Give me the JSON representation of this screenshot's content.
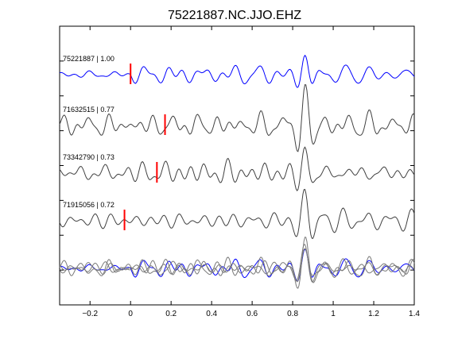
{
  "chart_data": {
    "type": "line",
    "title": "75221887.NC.JJO.EHZ",
    "xlabel": "",
    "ylabel": "",
    "xlim": [
      -0.35,
      1.4
    ],
    "xticks": [
      -0.2,
      0,
      0.2,
      0.4,
      0.6,
      0.8,
      1,
      1.2,
      1.4
    ],
    "xtick_labels": [
      "−0.2",
      "0",
      "0.2",
      "0.4",
      "0.6",
      "0.8",
      "1",
      "1.2",
      "1.4"
    ],
    "ytick_count": 9,
    "grid": false,
    "legend": "none",
    "colors": {
      "reference": "#0000ff",
      "matched": "#404040",
      "pick": "#ff0000",
      "overlay": "#7a7a7a"
    },
    "traces": [
      {
        "label": "75221887 | 1.00",
        "event_id": "75221887",
        "correlation": 1.0,
        "pick_time": 0.0,
        "color": "#0000ff",
        "seed": 11
      },
      {
        "label": "71632515 | 0.77",
        "event_id": "71632515",
        "correlation": 0.77,
        "pick_time": 0.17,
        "color": "#404040",
        "seed": 23
      },
      {
        "label": "73342790 | 0.73",
        "event_id": "73342790",
        "correlation": 0.73,
        "pick_time": 0.13,
        "color": "#404040",
        "seed": 37
      },
      {
        "label": "71915056 | 0.72",
        "event_id": "71915056",
        "correlation": 0.72,
        "pick_time": -0.03,
        "color": "#404040",
        "seed": 53
      }
    ],
    "stack": {
      "description_shown": false
    }
  }
}
